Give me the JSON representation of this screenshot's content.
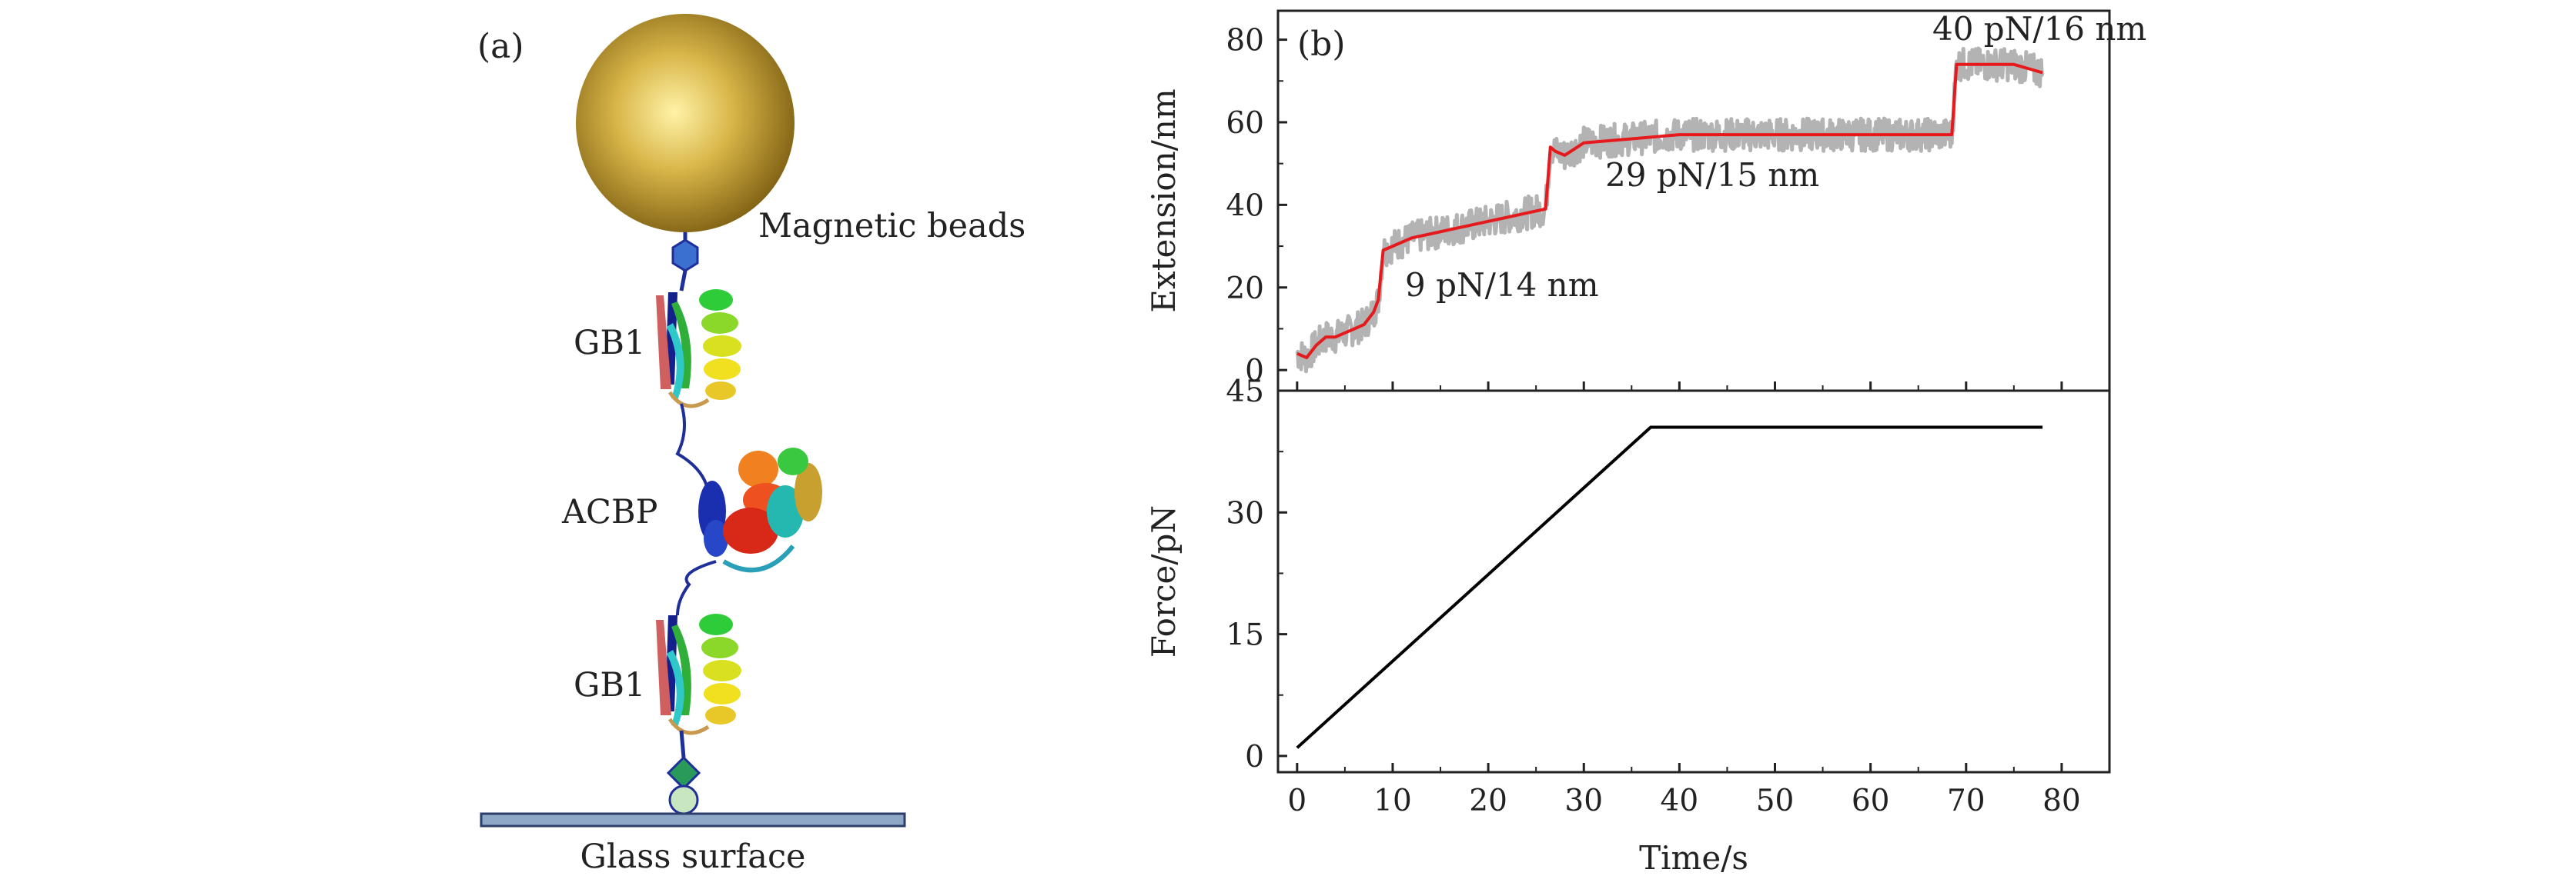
{
  "panel_a": {
    "label": "(a)",
    "bead_label": "Magnetic beads",
    "protein_top_label": "GB1",
    "protein_mid_label": "ACBP",
    "protein_bottom_label": "GB1",
    "surface_label": "Glass surface",
    "colors": {
      "bead": "#b8941e",
      "surface": "#8fa8c8",
      "linker": "#1f2f9a"
    }
  },
  "panel_b": {
    "label": "(b)"
  },
  "chart_data": [
    {
      "type": "line",
      "xlabel": "",
      "ylabel": "Extension/nm",
      "xlim": [
        -2,
        85
      ],
      "ylim": [
        -5,
        87
      ],
      "xticks": [
        0,
        10,
        20,
        30,
        40,
        50,
        60,
        70,
        80
      ],
      "yticks": [
        0,
        20,
        40,
        60,
        80
      ],
      "ytick_labels": [
        "0",
        "20",
        "40",
        "60",
        "80"
      ],
      "series": [
        {
          "color": "#e41a1c",
          "x": [
            0,
            1,
            2,
            3,
            4,
            5,
            6,
            7,
            8,
            8.5,
            9,
            10,
            12,
            14,
            16,
            18,
            20,
            22,
            24,
            26,
            26.5,
            27,
            28,
            30,
            35,
            40,
            45,
            50,
            55,
            60,
            65,
            68.5,
            69,
            70,
            72,
            75,
            78
          ],
          "y": [
            4,
            3,
            6,
            8,
            8,
            9,
            10,
            11,
            14,
            17,
            29,
            30,
            32,
            33,
            34,
            35,
            36,
            37,
            38,
            39,
            54,
            53,
            52,
            55,
            56,
            57,
            57,
            57,
            57,
            57,
            57,
            57,
            74,
            74,
            74,
            74,
            72
          ]
        },
        {
          "color": "#b3b3b3",
          "x": [
            0,
            1,
            2,
            3,
            4,
            5,
            6,
            7,
            8,
            8.5,
            9,
            10,
            12,
            14,
            16,
            18,
            20,
            22,
            24,
            26,
            26.5,
            27,
            28,
            30,
            35,
            40,
            45,
            50,
            55,
            60,
            65,
            68.5,
            69,
            70,
            72,
            75,
            78
          ],
          "y": [
            4,
            3,
            6,
            8,
            8,
            9,
            10,
            11,
            14,
            17,
            29,
            30,
            32,
            33,
            34,
            35,
            36,
            37,
            38,
            39,
            54,
            53,
            52,
            55,
            56,
            57,
            57,
            57,
            57,
            57,
            57,
            57,
            74,
            74,
            74,
            74,
            72
          ],
          "noise_amplitude": 4
        }
      ],
      "annotations": [
        "9 pN/14 nm",
        "29 pN/15 nm",
        "40 pN/16 nm"
      ]
    },
    {
      "type": "line",
      "xlabel": "Time/s",
      "ylabel": "Force/pN",
      "xlim": [
        -2,
        85
      ],
      "ylim": [
        -2,
        45
      ],
      "xticks": [
        0,
        10,
        20,
        30,
        40,
        50,
        60,
        70,
        80
      ],
      "xtick_labels": [
        "0",
        "10",
        "20",
        "30",
        "40",
        "50",
        "60",
        "70",
        "80"
      ],
      "yticks": [
        0,
        15,
        30,
        45
      ],
      "ytick_labels": [
        "0",
        "15",
        "30",
        "45"
      ],
      "series": [
        {
          "color": "#000000",
          "x": [
            0,
            37,
            78
          ],
          "y": [
            1,
            40.5,
            40.5
          ]
        }
      ]
    }
  ]
}
